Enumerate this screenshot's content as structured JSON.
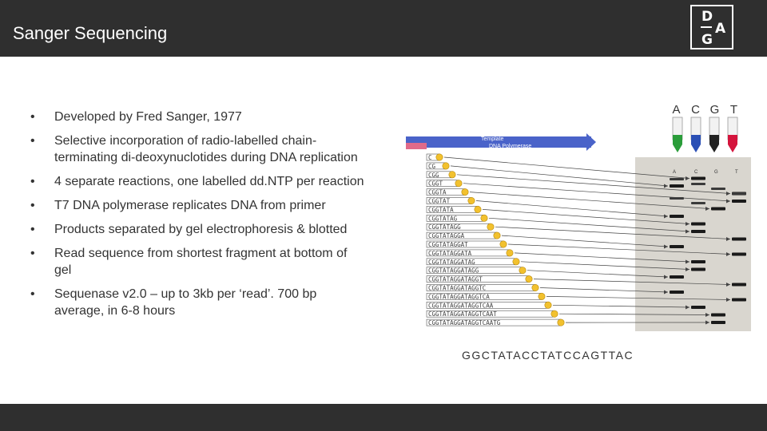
{
  "slide": {
    "title": "Sanger Sequencing",
    "logo": {
      "line1": "D",
      "line2": "A",
      "line3": "G"
    }
  },
  "bullets": [
    "Developed by Fred Sanger, 1977",
    "Selective incorporation of radio-labelled chain-terminating di-deoxynuclotides during DNA replication",
    "4 separate reactions, one labelled dd.NTP per reaction",
    "T7 DNA polymerase replicates DNA from primer",
    "Products separated by gel electrophoresis & blotted",
    "Read sequence from shortest fragment at bottom of gel",
    "Sequenase v2.0 – up to 3kb per ‘read’. 700 bp average, in 6-8 hours"
  ],
  "bullet_symbol": "•",
  "figure": {
    "template_label": "Template",
    "polymerase_label": "DNA Polymerase",
    "tube_labels": [
      "A",
      "C",
      "G",
      "T"
    ],
    "tube_colors": [
      "#2a9d3a",
      "#2a4fb5",
      "#222222",
      "#d4143c"
    ],
    "lane_labels": [
      "A",
      "C",
      "G",
      "T"
    ],
    "sequence": "GGCTATACCTATCCAGTTAC",
    "fragments": [
      "C",
      "CG",
      "CGG",
      "CGGT",
      "CGGTA",
      "CGGTAT",
      "CGGTATA",
      "CGGTATAG",
      "CGGTATAGG",
      "CGGTATAGGA",
      "CGGTATAGGAT",
      "CGGTATAGGATA",
      "CGGTATAGGATAG",
      "CGGTATAGGATAGG",
      "CGGTATAGGATAGGT",
      "CGGTATAGGATAGGTC",
      "CGGTATAGGATAGGTCA",
      "CGGTATAGGATAGGTCAA",
      "CGGTATAGGATAGGTCAAT",
      "CGGTATAGGATAGGTCAATG"
    ]
  }
}
